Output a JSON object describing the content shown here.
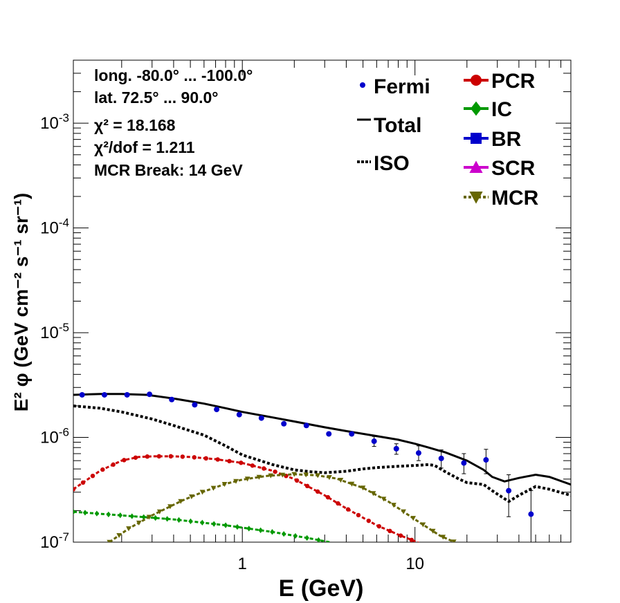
{
  "chart_data": {
    "type": "line",
    "xlabel": "E (GeV)",
    "ylabel": "E² φ (GeV cm⁻² s⁻¹ sr⁻¹)",
    "xlim": [
      0.105,
      80
    ],
    "ylim": [
      1e-07,
      0.004
    ],
    "x_scale": "log",
    "y_scale": "log",
    "grid": false,
    "x_tick_labels": [
      {
        "v": 1,
        "label": "1"
      },
      {
        "v": 10,
        "label": "10"
      }
    ],
    "y_tick_labels": [
      {
        "v": 1e-07,
        "base": "10",
        "exp": "-7"
      },
      {
        "v": 1e-06,
        "base": "10",
        "exp": "-6"
      },
      {
        "v": 1e-05,
        "base": "10",
        "exp": "-5"
      },
      {
        "v": 0.0001,
        "base": "10",
        "exp": "-4"
      },
      {
        "v": 0.001,
        "base": "10",
        "exp": "-3"
      }
    ],
    "info_text": [
      "long. -80.0° ... -100.0°",
      "lat. 72.5° ... 90.0°",
      "χ² = 18.168",
      "χ²/dof = 1.211",
      "MCR Break: 14 GeV"
    ],
    "legend_left": [
      {
        "label": "Fermi",
        "style": "points",
        "color": "#0000cc"
      },
      {
        "label": "Total",
        "style": "line",
        "color": "#000000"
      },
      {
        "label": "ISO",
        "style": "dotted",
        "color": "#000000"
      }
    ],
    "legend_right": [
      {
        "label": "PCR",
        "color": "#cc0000",
        "marker": "circle"
      },
      {
        "label": "IC",
        "color": "#009900",
        "marker": "diamond"
      },
      {
        "label": "BR",
        "color": "#0000cc",
        "marker": "square"
      },
      {
        "label": "SCR",
        "color": "#cc00cc",
        "marker": "triangle-up"
      },
      {
        "label": "MCR",
        "color": "#666600",
        "marker": "triangle-down"
      }
    ],
    "fermi": {
      "name": "Fermi",
      "points": [
        {
          "x": 0.118,
          "y": 2.55e-06
        },
        {
          "x": 0.159,
          "y": 2.55e-06
        },
        {
          "x": 0.215,
          "y": 2.55e-06
        },
        {
          "x": 0.29,
          "y": 2.58e-06
        },
        {
          "x": 0.39,
          "y": 2.3e-06
        },
        {
          "x": 0.53,
          "y": 2.05e-06
        },
        {
          "x": 0.71,
          "y": 1.85e-06
        },
        {
          "x": 0.96,
          "y": 1.65e-06
        },
        {
          "x": 1.29,
          "y": 1.53e-06
        },
        {
          "x": 1.74,
          "y": 1.35e-06
        },
        {
          "x": 2.35,
          "y": 1.3e-06
        },
        {
          "x": 3.17,
          "y": 1.08e-06
        },
        {
          "x": 4.3,
          "y": 1.08e-06
        },
        {
          "x": 5.8,
          "y": 9.2e-07,
          "yerr": [
            8.2e-07,
            1.02e-06
          ]
        },
        {
          "x": 7.8,
          "y": 7.8e-07,
          "yerr": [
            6.9e-07,
            8.7e-07
          ]
        },
        {
          "x": 10.5,
          "y": 7.1e-07,
          "yerr": [
            6e-07,
            8.3e-07
          ]
        },
        {
          "x": 14.2,
          "y": 6.3e-07,
          "yerr": [
            5.1e-07,
            7.6e-07
          ]
        },
        {
          "x": 19.2,
          "y": 5.7e-07,
          "yerr": [
            4.5e-07,
            7e-07
          ]
        },
        {
          "x": 25.8,
          "y": 6.1e-07,
          "yerr": [
            4.5e-07,
            7.7e-07
          ]
        },
        {
          "x": 34.9,
          "y": 3.1e-07,
          "yerr": [
            1.75e-07,
            4.4e-07
          ]
        },
        {
          "x": 47.0,
          "y": 1.85e-07,
          "yerr": [
            1e-07,
            3.1e-07
          ]
        }
      ]
    },
    "series": [
      {
        "name": "Total",
        "style": "solid",
        "color": "#000000",
        "x": [
          0.105,
          0.15,
          0.2,
          0.28,
          0.4,
          0.6,
          0.8,
          1.0,
          1.5,
          2,
          3,
          4,
          6,
          8,
          10,
          12,
          15,
          20,
          25,
          28,
          33,
          40,
          50,
          60,
          80
        ],
        "y": [
          2.55e-06,
          2.6e-06,
          2.6e-06,
          2.55e-06,
          2.35e-06,
          2.1e-06,
          1.9e-06,
          1.75e-06,
          1.55e-06,
          1.42e-06,
          1.25e-06,
          1.15e-06,
          1.03e-06,
          9.5e-07,
          8.7e-07,
          8e-07,
          7.2e-07,
          6e-07,
          4.9e-07,
          4.2e-07,
          3.8e-07,
          4.1e-07,
          4.4e-07,
          4.2e-07,
          3.55e-07
        ]
      },
      {
        "name": "ISO",
        "style": "dotted",
        "color": "#000000",
        "x": [
          0.105,
          0.15,
          0.2,
          0.3,
          0.4,
          0.6,
          0.8,
          1.0,
          1.5,
          2,
          2.5,
          3,
          4,
          5,
          6,
          8,
          10,
          12,
          13,
          15,
          18,
          20,
          25,
          28,
          33,
          35,
          40,
          50,
          60,
          80
        ],
        "y": [
          2e-06,
          1.9e-06,
          1.75e-06,
          1.5e-06,
          1.3e-06,
          1.05e-06,
          8.3e-07,
          6.8e-07,
          5.5e-07,
          4.9e-07,
          4.7e-07,
          4.6e-07,
          4.75e-07,
          5e-07,
          5.15e-07,
          5.3e-07,
          5.4e-07,
          5.5e-07,
          5.4e-07,
          4.7e-07,
          4e-07,
          3.7e-07,
          3.55e-07,
          3.1e-07,
          2.6e-07,
          2.45e-07,
          2.8e-07,
          3.4e-07,
          3.2e-07,
          2.8e-07
        ]
      },
      {
        "name": "PCR",
        "style": "marker-line",
        "color": "#cc0000",
        "x": [
          0.105,
          0.15,
          0.2,
          0.25,
          0.3,
          0.4,
          0.5,
          0.7,
          1.0,
          1.5,
          2,
          3,
          4,
          6,
          8,
          10,
          11
        ],
        "y": [
          3.2e-07,
          4.8e-07,
          6e-07,
          6.5e-07,
          6.6e-07,
          6.6e-07,
          6.5e-07,
          6.2e-07,
          5.7e-07,
          4.8e-07,
          4e-07,
          2.8e-07,
          2.1e-07,
          1.45e-07,
          1.18e-07,
          1.02e-07,
          9.5e-08
        ]
      },
      {
        "name": "IC",
        "style": "marker-line",
        "color": "#009900",
        "x": [
          0.105,
          0.2,
          0.4,
          0.8,
          1.5,
          2.5,
          3.2
        ],
        "y": [
          1.95e-07,
          1.8e-07,
          1.65e-07,
          1.45e-07,
          1.25e-07,
          1.08e-07,
          1e-07
        ]
      },
      {
        "name": "MCR",
        "style": "marker-line",
        "color": "#666600",
        "x": [
          0.17,
          0.22,
          0.3,
          0.45,
          0.6,
          0.8,
          1.0,
          1.4,
          2.0,
          2.7,
          3.5,
          5,
          7,
          10,
          14,
          17
        ],
        "y": [
          1e-07,
          1.35e-07,
          1.8e-07,
          2.5e-07,
          3.05e-07,
          3.6e-07,
          3.95e-07,
          4.3e-07,
          4.45e-07,
          4.35e-07,
          4.05e-07,
          3.3e-07,
          2.45e-07,
          1.65e-07,
          1.15e-07,
          1e-07
        ]
      }
    ]
  }
}
